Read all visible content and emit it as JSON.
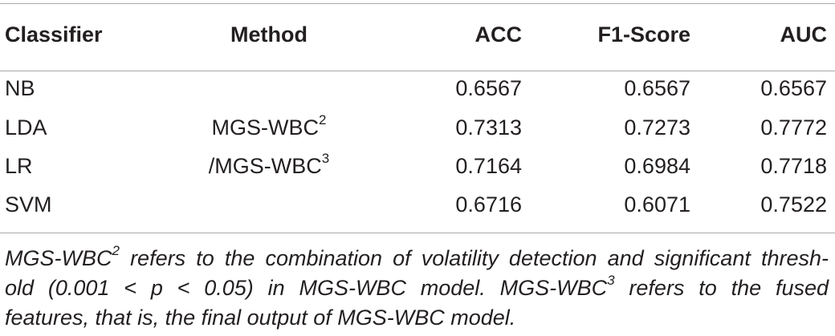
{
  "table": {
    "headers": [
      "Classifier",
      "Method",
      "ACC",
      "F1-Score",
      "AUC"
    ],
    "rows": [
      {
        "classifier": "NB",
        "acc": "0.6567",
        "f1": "0.6567",
        "auc": "0.6567"
      },
      {
        "classifier": "LDA",
        "acc": "0.7313",
        "f1": "0.7273",
        "auc": "0.7772"
      },
      {
        "classifier": "LR",
        "acc": "0.7164",
        "f1": "0.6984",
        "auc": "0.7718"
      },
      {
        "classifier": "SVM",
        "acc": "0.6716",
        "f1": "0.6071",
        "auc": "0.7522"
      }
    ],
    "method": {
      "line1_base": "MGS-WBC",
      "line1_sup": "2",
      "line2_base": "/MGS-WBC",
      "line2_sup": "3"
    }
  },
  "footnote": {
    "l1_a": "MGS-WBC",
    "l1_sup": "2",
    "l1_b": " refers to the combination of volatility detection and significant thresh-",
    "l2_a": "old (0.001 < p < 0.05) in MGS-WBC model. MGS-WBC",
    "l2_sup": "3",
    "l2_b": " refers to the fused",
    "l3": "features, that is, the final output of MGS-WBC model."
  }
}
